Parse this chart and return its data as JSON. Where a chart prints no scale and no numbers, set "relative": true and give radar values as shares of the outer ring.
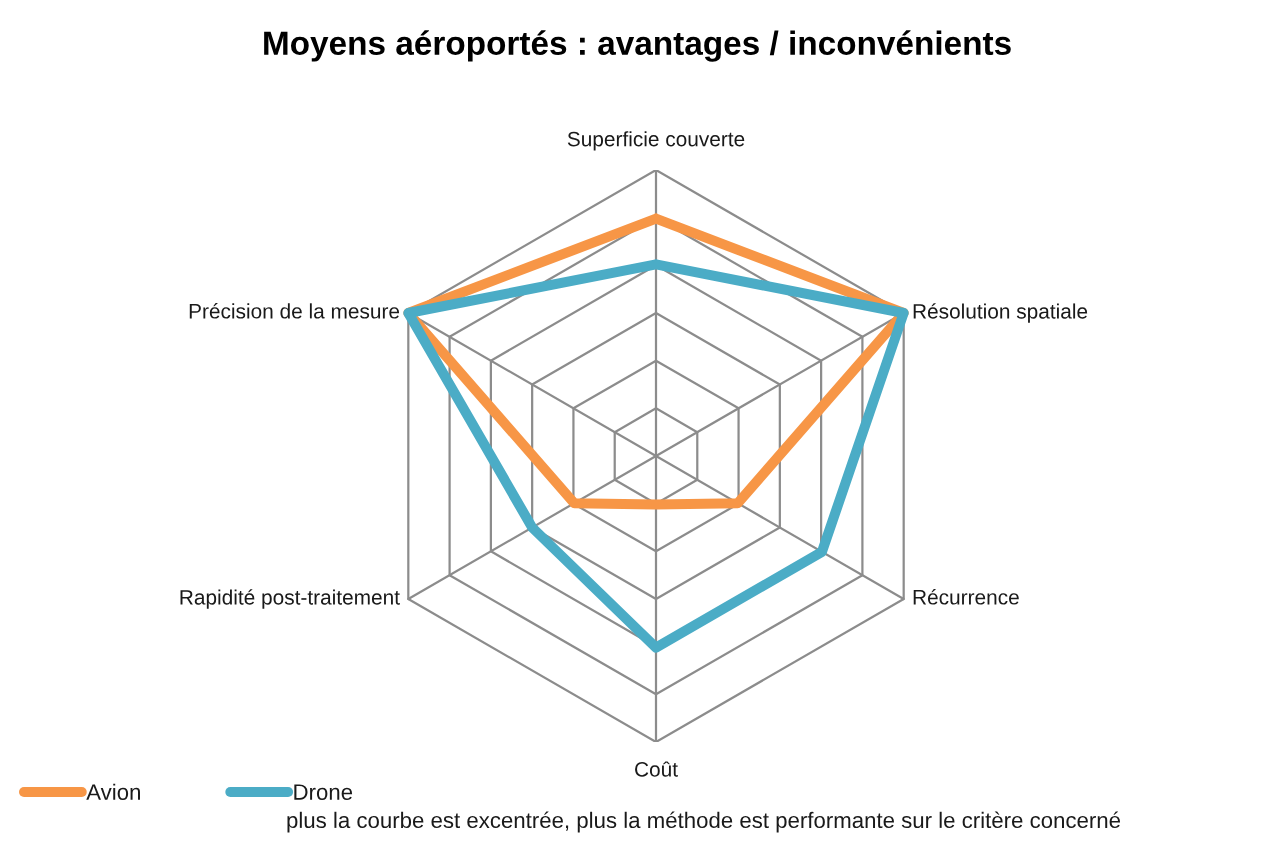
{
  "chart_data": {
    "type": "radar",
    "title": "Moyens aéroportés : avantages / inconvénients",
    "categories": [
      "Superficie couverte",
      "Résolution spatiale",
      "Récurrence",
      "Coût",
      "Rapidité post-traitement",
      "Précision de la mesure"
    ],
    "relative": true,
    "series": [
      {
        "name": "Avion",
        "color": "#f79646",
        "values": [
          0.83,
          1,
          0.33,
          0.17,
          0.33,
          1
        ]
      },
      {
        "name": "Drone",
        "color": "#4bacc6",
        "values": [
          0.67,
          1,
          0.67,
          0.67,
          0.5,
          1
        ]
      }
    ],
    "grid": true,
    "legend": "bottom left",
    "annotations": [
      "plus la courbe est excentrée, plus la méthode est performante sur le critère concerné"
    ]
  }
}
